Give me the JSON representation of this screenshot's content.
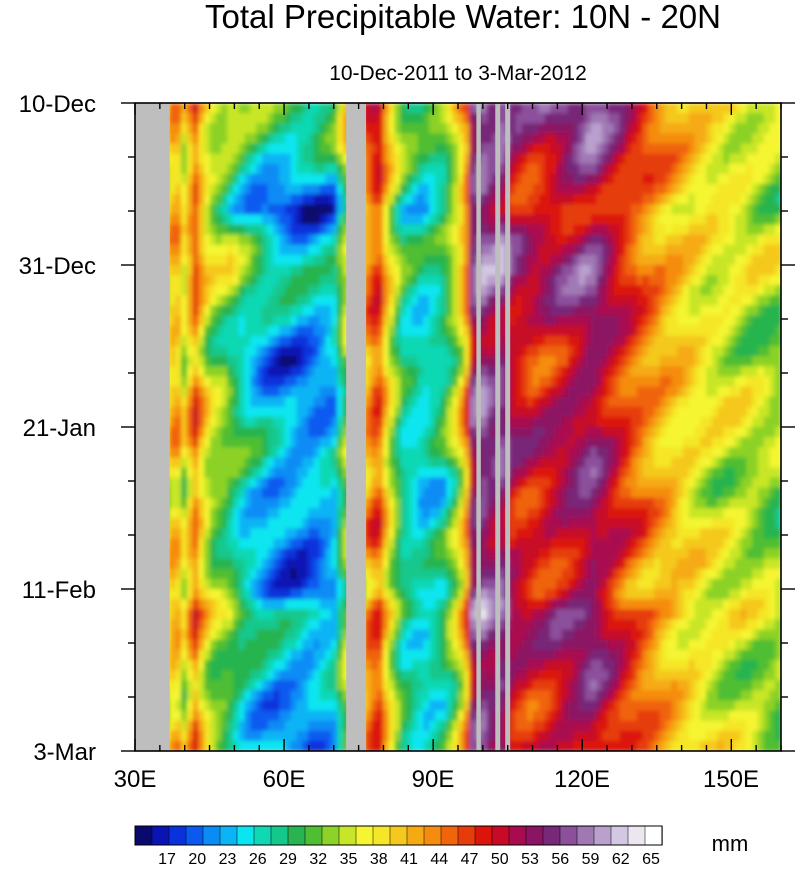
{
  "chart_data": {
    "type": "heatmap",
    "title": "Total Precipitable Water: 10N - 20N",
    "subtitle": "10-Dec-2011 to 3-Mar-2012",
    "x_axis": {
      "range": [
        30,
        160
      ],
      "ticks": [
        30,
        60,
        90,
        120,
        150
      ],
      "tick_labels": [
        "30E",
        "60E",
        "90E",
        "120E",
        "150E"
      ]
    },
    "y_axis": {
      "range_days": [
        0,
        84
      ],
      "direction": "time increases downward",
      "ticks_days": [
        0,
        21,
        42,
        63,
        84
      ],
      "tick_labels": [
        "10-Dec",
        "31-Dec",
        "21-Jan",
        "11-Feb",
        "3-Mar"
      ]
    },
    "colorbar": {
      "units": "mm",
      "levels": [
        17,
        20,
        23,
        26,
        29,
        32,
        35,
        38,
        41,
        44,
        47,
        50,
        53,
        56,
        59,
        62,
        65
      ],
      "colors": [
        "#0a0a6e",
        "#0a14b4",
        "#0a32dc",
        "#0a5af0",
        "#0a8cf5",
        "#0ab4f5",
        "#0ae6f0",
        "#10d8b4",
        "#14c88c",
        "#28b450",
        "#50be32",
        "#8cd228",
        "#c8e628",
        "#f5f532",
        "#f5e628",
        "#f5c81e",
        "#f5aa14",
        "#f58c0f",
        "#f0640a",
        "#e63c0a",
        "#dc140a",
        "#c80a28",
        "#aa0a50",
        "#8c1464",
        "#782878",
        "#8c509b",
        "#a078b4",
        "#b9a0cd",
        "#d2c8e1",
        "#ebe6f0",
        "#ffffff"
      ]
    },
    "land_mask_color": "#bebebe",
    "masked_longitude_bands": [
      [
        30,
        37
      ],
      [
        72.5,
        76.5
      ],
      [
        98.7,
        99.6
      ],
      [
        102.5,
        103.5
      ],
      [
        104.5,
        105.5
      ]
    ],
    "longitude_profile": [
      {
        "lon": 37,
        "value": 38
      },
      {
        "lon": 38,
        "value": 44
      },
      {
        "lon": 40,
        "value": 36
      },
      {
        "lon": 42,
        "value": 46
      },
      {
        "lon": 44,
        "value": 38
      },
      {
        "lon": 46,
        "value": 34
      },
      {
        "lon": 48,
        "value": 33
      },
      {
        "lon": 50,
        "value": 31
      },
      {
        "lon": 52,
        "value": 28
      },
      {
        "lon": 55,
        "value": 26
      },
      {
        "lon": 58,
        "value": 24
      },
      {
        "lon": 62,
        "value": 23
      },
      {
        "lon": 66,
        "value": 23
      },
      {
        "lon": 70,
        "value": 25
      },
      {
        "lon": 72,
        "value": 33
      },
      {
        "lon": 77,
        "value": 44
      },
      {
        "lon": 79,
        "value": 48
      },
      {
        "lon": 81,
        "value": 38
      },
      {
        "lon": 84,
        "value": 29
      },
      {
        "lon": 88,
        "value": 26
      },
      {
        "lon": 92,
        "value": 29
      },
      {
        "lon": 95,
        "value": 36
      },
      {
        "lon": 97,
        "value": 45
      },
      {
        "lon": 98,
        "value": 56
      },
      {
        "lon": 100,
        "value": 58
      },
      {
        "lon": 102,
        "value": 55
      },
      {
        "lon": 104,
        "value": 57
      },
      {
        "lon": 106,
        "value": 52
      },
      {
        "lon": 110,
        "value": 50
      },
      {
        "lon": 114,
        "value": 51
      },
      {
        "lon": 118,
        "value": 53
      },
      {
        "lon": 122,
        "value": 55
      },
      {
        "lon": 126,
        "value": 51
      },
      {
        "lon": 130,
        "value": 47
      },
      {
        "lon": 135,
        "value": 43
      },
      {
        "lon": 140,
        "value": 40
      },
      {
        "lon": 146,
        "value": 37
      },
      {
        "lon": 152,
        "value": 36
      },
      {
        "lon": 160,
        "value": 34
      }
    ],
    "time_profile": [
      {
        "day": 0,
        "offset": 6
      },
      {
        "day": 5,
        "offset": 4
      },
      {
        "day": 10,
        "offset": 0
      },
      {
        "day": 14,
        "offset": -5
      },
      {
        "day": 18,
        "offset": 2
      },
      {
        "day": 22,
        "offset": 4
      },
      {
        "day": 28,
        "offset": 0
      },
      {
        "day": 33,
        "offset": -4
      },
      {
        "day": 38,
        "offset": 0
      },
      {
        "day": 45,
        "offset": 1
      },
      {
        "day": 50,
        "offset": -3
      },
      {
        "day": 55,
        "offset": 0
      },
      {
        "day": 60,
        "offset": -2
      },
      {
        "day": 63,
        "offset": -4
      },
      {
        "day": 66,
        "offset": 3
      },
      {
        "day": 72,
        "offset": 0
      },
      {
        "day": 78,
        "offset": -2
      },
      {
        "day": 84,
        "offset": 0
      }
    ]
  }
}
